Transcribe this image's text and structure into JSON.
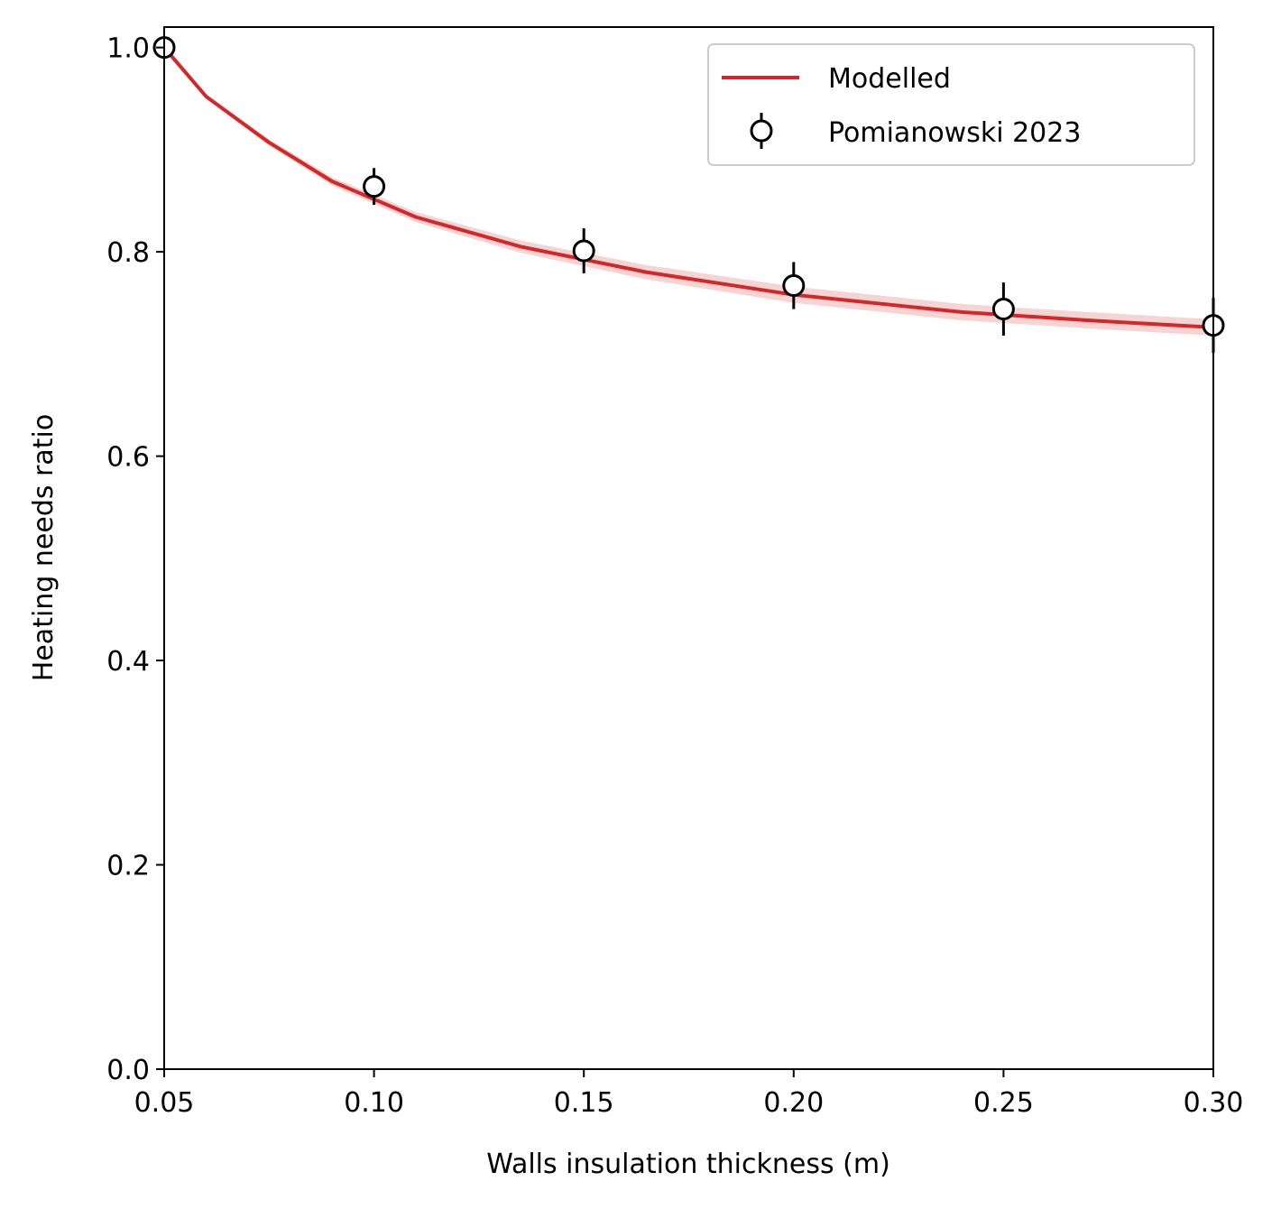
{
  "chart_data": {
    "type": "line",
    "xlabel": "Walls insulation thickness (m)",
    "ylabel": "Heating needs ratio",
    "xlim": [
      0.05,
      0.3
    ],
    "ylim": [
      0.0,
      1.02
    ],
    "xticks": [
      0.05,
      0.1,
      0.15,
      0.2,
      0.25,
      0.3
    ],
    "xtick_labels": [
      "0.05",
      "0.10",
      "0.15",
      "0.20",
      "0.25",
      "0.30"
    ],
    "yticks": [
      0.0,
      0.2,
      0.4,
      0.6,
      0.8,
      1.0
    ],
    "ytick_labels": [
      "0.0",
      "0.2",
      "0.4",
      "0.6",
      "0.8",
      "1.0"
    ],
    "grid": false,
    "legend_position": "upper-right",
    "series": [
      {
        "name": "Modelled",
        "kind": "line",
        "color": "#d62728",
        "x": [
          0.05,
          0.06,
          0.075,
          0.09,
          0.11,
          0.135,
          0.165,
          0.2,
          0.24,
          0.27,
          0.3
        ],
        "y": [
          1.0,
          0.952,
          0.907,
          0.869,
          0.834,
          0.805,
          0.78,
          0.758,
          0.741,
          0.733,
          0.726
        ],
        "band_lower": [
          1.0,
          0.95,
          0.904,
          0.865,
          0.829,
          0.799,
          0.773,
          0.75,
          0.733,
          0.725,
          0.718
        ],
        "band_upper": [
          1.0,
          0.954,
          0.91,
          0.873,
          0.839,
          0.811,
          0.787,
          0.766,
          0.749,
          0.741,
          0.734
        ]
      },
      {
        "name": "Pomianowski 2023",
        "kind": "errorbar",
        "marker": "circle-open",
        "color": "#000000",
        "x": [
          0.05,
          0.1,
          0.15,
          0.2,
          0.25,
          0.3
        ],
        "y": [
          1.0,
          0.864,
          0.801,
          0.767,
          0.744,
          0.728
        ],
        "yerr": [
          0.0,
          0.018,
          0.022,
          0.023,
          0.026,
          0.027
        ]
      }
    ]
  }
}
